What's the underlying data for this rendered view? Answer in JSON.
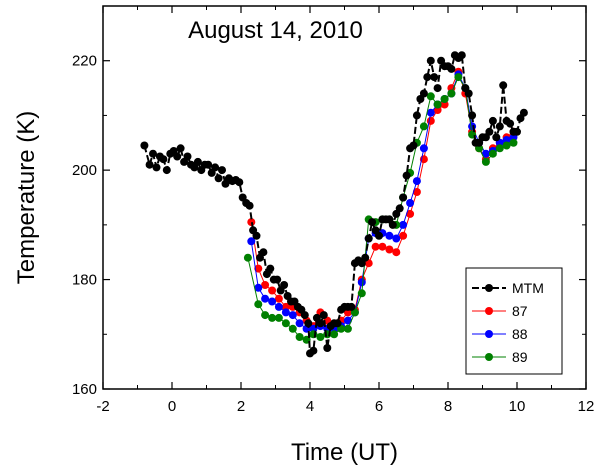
{
  "chart_data": {
    "type": "line",
    "title": "August 14, 2010",
    "xlabel": "Time (UT)",
    "ylabel": "Temperature (K)",
    "xlim": [
      -2,
      12
    ],
    "ylim": [
      160,
      230
    ],
    "xticks": [
      -2,
      0,
      2,
      4,
      6,
      8,
      10,
      12
    ],
    "yticks": [
      160,
      180,
      200,
      220
    ],
    "legend_position": "bottom-right",
    "series": [
      {
        "name": "MTM",
        "color": "#000000",
        "dashed": true,
        "points": [
          [
            -0.8,
            204.5
          ],
          [
            -0.65,
            201
          ],
          [
            -0.55,
            203
          ],
          [
            -0.45,
            200.5
          ],
          [
            -0.35,
            202.5
          ],
          [
            -0.25,
            202
          ],
          [
            -0.15,
            200
          ],
          [
            -0.05,
            203
          ],
          [
            0.05,
            203.5
          ],
          [
            0.15,
            202.5
          ],
          [
            0.25,
            204
          ],
          [
            0.35,
            201.5
          ],
          [
            0.45,
            202.5
          ],
          [
            0.55,
            201
          ],
          [
            0.65,
            200.5
          ],
          [
            0.75,
            201.5
          ],
          [
            0.85,
            200
          ],
          [
            0.95,
            201
          ],
          [
            1.05,
            201
          ],
          [
            1.15,
            199.5
          ],
          [
            1.25,
            200.5
          ],
          [
            1.35,
            198.5
          ],
          [
            1.45,
            200
          ],
          [
            1.55,
            197.5
          ],
          [
            1.65,
            198.5
          ],
          [
            1.75,
            198
          ],
          [
            1.85,
            198.2
          ],
          [
            1.95,
            197.8
          ],
          [
            2.05,
            195
          ],
          [
            2.15,
            194
          ],
          [
            2.25,
            193.5
          ],
          [
            2.35,
            189
          ],
          [
            2.45,
            188
          ],
          [
            2.55,
            184
          ],
          [
            2.65,
            185
          ],
          [
            2.75,
            181
          ],
          [
            2.85,
            182
          ],
          [
            2.95,
            180
          ],
          [
            3.05,
            180
          ],
          [
            3.15,
            178
          ],
          [
            3.25,
            179
          ],
          [
            3.35,
            177
          ],
          [
            3.45,
            176
          ],
          [
            3.55,
            176
          ],
          [
            3.65,
            175
          ],
          [
            3.75,
            174.5
          ],
          [
            3.85,
            173.5
          ],
          [
            3.95,
            172
          ],
          [
            4.0,
            166.5
          ],
          [
            4.1,
            167
          ],
          [
            4.2,
            173
          ],
          [
            4.3,
            172
          ],
          [
            4.4,
            173.5
          ],
          [
            4.5,
            167.5
          ],
          [
            4.6,
            171.5
          ],
          [
            4.7,
            172
          ],
          [
            4.8,
            172
          ],
          [
            4.9,
            174.5
          ],
          [
            5.0,
            175
          ],
          [
            5.1,
            175
          ],
          [
            5.2,
            175
          ],
          [
            5.3,
            183
          ],
          [
            5.4,
            183.5
          ],
          [
            5.5,
            183
          ],
          [
            5.6,
            184
          ],
          [
            5.7,
            187.5
          ],
          [
            5.8,
            190.5
          ],
          [
            5.9,
            189
          ],
          [
            6.0,
            188
          ],
          [
            6.1,
            191
          ],
          [
            6.2,
            191
          ],
          [
            6.3,
            191
          ],
          [
            6.4,
            190
          ],
          [
            6.5,
            192
          ],
          [
            6.6,
            193
          ],
          [
            6.7,
            195
          ],
          [
            6.8,
            199
          ],
          [
            6.9,
            204
          ],
          [
            7.0,
            204.5
          ],
          [
            7.1,
            210
          ],
          [
            7.2,
            213
          ],
          [
            7.3,
            214
          ],
          [
            7.4,
            217
          ],
          [
            7.5,
            220
          ],
          [
            7.6,
            217
          ],
          [
            7.7,
            215
          ],
          [
            7.8,
            220
          ],
          [
            7.9,
            219
          ],
          [
            8.0,
            219
          ],
          [
            8.1,
            218.5
          ],
          [
            8.2,
            221
          ],
          [
            8.3,
            220.5
          ],
          [
            8.4,
            221
          ],
          [
            8.5,
            215
          ],
          [
            8.6,
            214
          ],
          [
            8.7,
            210
          ],
          [
            8.8,
            205
          ],
          [
            8.9,
            205
          ],
          [
            9.0,
            206
          ],
          [
            9.1,
            206
          ],
          [
            9.2,
            207
          ],
          [
            9.3,
            209
          ],
          [
            9.4,
            206
          ],
          [
            9.5,
            208
          ],
          [
            9.6,
            215.5
          ],
          [
            9.7,
            209
          ],
          [
            9.8,
            208.5
          ],
          [
            9.9,
            207
          ],
          [
            10.0,
            207
          ],
          [
            10.1,
            209.5
          ],
          [
            10.2,
            210.5
          ]
        ]
      },
      {
        "name": "87",
        "color": "#ff0000",
        "dashed": false,
        "points": [
          [
            2.3,
            190.5
          ],
          [
            2.5,
            182
          ],
          [
            2.7,
            179
          ],
          [
            2.9,
            178
          ],
          [
            3.1,
            176.5
          ],
          [
            3.3,
            175
          ],
          [
            3.5,
            175
          ],
          [
            3.7,
            174
          ],
          [
            3.9,
            172.5
          ],
          [
            4.1,
            171.5
          ],
          [
            4.3,
            174
          ],
          [
            4.5,
            172.5
          ],
          [
            4.7,
            171.5
          ],
          [
            4.9,
            172.5
          ],
          [
            5.1,
            174
          ],
          [
            5.3,
            174.5
          ],
          [
            5.5,
            180
          ],
          [
            5.7,
            183
          ],
          [
            5.9,
            186
          ],
          [
            6.1,
            186
          ],
          [
            6.3,
            185.5
          ],
          [
            6.5,
            185
          ],
          [
            6.7,
            188
          ],
          [
            6.9,
            192
          ],
          [
            7.1,
            196
          ],
          [
            7.3,
            202
          ],
          [
            7.5,
            209
          ],
          [
            7.7,
            211
          ],
          [
            7.9,
            212
          ],
          [
            8.1,
            215
          ],
          [
            8.3,
            218
          ],
          [
            8.5,
            214
          ],
          [
            8.7,
            207
          ],
          [
            8.9,
            204
          ],
          [
            9.1,
            202
          ],
          [
            9.3,
            204
          ],
          [
            9.5,
            205
          ],
          [
            9.7,
            206
          ],
          [
            9.9,
            207
          ]
        ]
      },
      {
        "name": "88",
        "color": "#0000ff",
        "dashed": false,
        "points": [
          [
            2.3,
            187
          ],
          [
            2.5,
            178.5
          ],
          [
            2.7,
            176.5
          ],
          [
            2.9,
            176
          ],
          [
            3.1,
            175
          ],
          [
            3.3,
            174
          ],
          [
            3.5,
            173.5
          ],
          [
            3.7,
            172
          ],
          [
            3.9,
            171
          ],
          [
            4.1,
            171
          ],
          [
            4.3,
            171.5
          ],
          [
            4.5,
            171
          ],
          [
            4.7,
            171
          ],
          [
            4.9,
            171.5
          ],
          [
            5.1,
            172.5
          ],
          [
            5.3,
            174
          ],
          [
            5.5,
            179.5
          ],
          [
            5.7,
            187.5
          ],
          [
            5.9,
            188.5
          ],
          [
            6.1,
            188.5
          ],
          [
            6.3,
            188
          ],
          [
            6.5,
            187.5
          ],
          [
            6.7,
            190
          ],
          [
            6.9,
            194
          ],
          [
            7.1,
            198
          ],
          [
            7.3,
            204
          ],
          [
            7.5,
            210.5
          ],
          [
            7.7,
            212
          ],
          [
            7.9,
            213
          ],
          [
            8.1,
            214
          ],
          [
            8.3,
            217.5
          ],
          [
            8.5,
            215
          ],
          [
            8.7,
            208
          ],
          [
            8.9,
            205
          ],
          [
            9.1,
            203
          ],
          [
            9.3,
            203.5
          ],
          [
            9.5,
            205
          ],
          [
            9.7,
            205.5
          ],
          [
            9.9,
            206
          ]
        ]
      },
      {
        "name": "89",
        "color": "#008000",
        "dashed": false,
        "points": [
          [
            2.2,
            184
          ],
          [
            2.5,
            175.5
          ],
          [
            2.7,
            173.5
          ],
          [
            2.9,
            173
          ],
          [
            3.1,
            173
          ],
          [
            3.3,
            172
          ],
          [
            3.5,
            171
          ],
          [
            3.7,
            169.5
          ],
          [
            3.9,
            169
          ],
          [
            4.1,
            170
          ],
          [
            4.3,
            169.5
          ],
          [
            4.5,
            170
          ],
          [
            4.7,
            170
          ],
          [
            4.9,
            171
          ],
          [
            5.1,
            171
          ],
          [
            5.3,
            174
          ],
          [
            5.5,
            177.5
          ],
          [
            5.7,
            191
          ],
          [
            5.9,
            190.5
          ],
          [
            6.1,
            191
          ],
          [
            6.3,
            191
          ],
          [
            6.5,
            190
          ],
          [
            6.7,
            195
          ],
          [
            6.9,
            199.5
          ],
          [
            7.1,
            205
          ],
          [
            7.3,
            208
          ],
          [
            7.5,
            213.5
          ],
          [
            7.7,
            212
          ],
          [
            7.9,
            213
          ],
          [
            8.1,
            214
          ],
          [
            8.3,
            217
          ],
          [
            8.5,
            215
          ],
          [
            8.7,
            206.5
          ],
          [
            8.9,
            204
          ],
          [
            9.1,
            201.5
          ],
          [
            9.3,
            203
          ],
          [
            9.5,
            204
          ],
          [
            9.7,
            204.5
          ],
          [
            9.9,
            205
          ]
        ]
      }
    ]
  }
}
